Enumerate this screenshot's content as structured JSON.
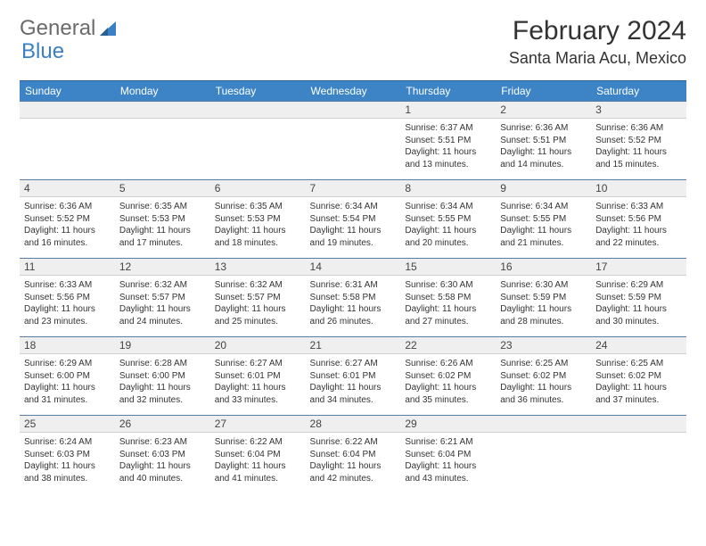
{
  "logo": {
    "text1": "General",
    "text2": "Blue"
  },
  "title": {
    "month": "February 2024",
    "location": "Santa Maria Acu, Mexico"
  },
  "headerColor": "#3c84c6",
  "dayBgColor": "#efefef",
  "weekdays": [
    "Sunday",
    "Monday",
    "Tuesday",
    "Wednesday",
    "Thursday",
    "Friday",
    "Saturday"
  ],
  "weeks": [
    [
      {
        "n": "",
        "sunrise": "",
        "sunset": "",
        "day": ""
      },
      {
        "n": "",
        "sunrise": "",
        "sunset": "",
        "day": ""
      },
      {
        "n": "",
        "sunrise": "",
        "sunset": "",
        "day": ""
      },
      {
        "n": "",
        "sunrise": "",
        "sunset": "",
        "day": ""
      },
      {
        "n": "1",
        "sunrise": "Sunrise: 6:37 AM",
        "sunset": "Sunset: 5:51 PM",
        "day": "Daylight: 11 hours and 13 minutes."
      },
      {
        "n": "2",
        "sunrise": "Sunrise: 6:36 AM",
        "sunset": "Sunset: 5:51 PM",
        "day": "Daylight: 11 hours and 14 minutes."
      },
      {
        "n": "3",
        "sunrise": "Sunrise: 6:36 AM",
        "sunset": "Sunset: 5:52 PM",
        "day": "Daylight: 11 hours and 15 minutes."
      }
    ],
    [
      {
        "n": "4",
        "sunrise": "Sunrise: 6:36 AM",
        "sunset": "Sunset: 5:52 PM",
        "day": "Daylight: 11 hours and 16 minutes."
      },
      {
        "n": "5",
        "sunrise": "Sunrise: 6:35 AM",
        "sunset": "Sunset: 5:53 PM",
        "day": "Daylight: 11 hours and 17 minutes."
      },
      {
        "n": "6",
        "sunrise": "Sunrise: 6:35 AM",
        "sunset": "Sunset: 5:53 PM",
        "day": "Daylight: 11 hours and 18 minutes."
      },
      {
        "n": "7",
        "sunrise": "Sunrise: 6:34 AM",
        "sunset": "Sunset: 5:54 PM",
        "day": "Daylight: 11 hours and 19 minutes."
      },
      {
        "n": "8",
        "sunrise": "Sunrise: 6:34 AM",
        "sunset": "Sunset: 5:55 PM",
        "day": "Daylight: 11 hours and 20 minutes."
      },
      {
        "n": "9",
        "sunrise": "Sunrise: 6:34 AM",
        "sunset": "Sunset: 5:55 PM",
        "day": "Daylight: 11 hours and 21 minutes."
      },
      {
        "n": "10",
        "sunrise": "Sunrise: 6:33 AM",
        "sunset": "Sunset: 5:56 PM",
        "day": "Daylight: 11 hours and 22 minutes."
      }
    ],
    [
      {
        "n": "11",
        "sunrise": "Sunrise: 6:33 AM",
        "sunset": "Sunset: 5:56 PM",
        "day": "Daylight: 11 hours and 23 minutes."
      },
      {
        "n": "12",
        "sunrise": "Sunrise: 6:32 AM",
        "sunset": "Sunset: 5:57 PM",
        "day": "Daylight: 11 hours and 24 minutes."
      },
      {
        "n": "13",
        "sunrise": "Sunrise: 6:32 AM",
        "sunset": "Sunset: 5:57 PM",
        "day": "Daylight: 11 hours and 25 minutes."
      },
      {
        "n": "14",
        "sunrise": "Sunrise: 6:31 AM",
        "sunset": "Sunset: 5:58 PM",
        "day": "Daylight: 11 hours and 26 minutes."
      },
      {
        "n": "15",
        "sunrise": "Sunrise: 6:30 AM",
        "sunset": "Sunset: 5:58 PM",
        "day": "Daylight: 11 hours and 27 minutes."
      },
      {
        "n": "16",
        "sunrise": "Sunrise: 6:30 AM",
        "sunset": "Sunset: 5:59 PM",
        "day": "Daylight: 11 hours and 28 minutes."
      },
      {
        "n": "17",
        "sunrise": "Sunrise: 6:29 AM",
        "sunset": "Sunset: 5:59 PM",
        "day": "Daylight: 11 hours and 30 minutes."
      }
    ],
    [
      {
        "n": "18",
        "sunrise": "Sunrise: 6:29 AM",
        "sunset": "Sunset: 6:00 PM",
        "day": "Daylight: 11 hours and 31 minutes."
      },
      {
        "n": "19",
        "sunrise": "Sunrise: 6:28 AM",
        "sunset": "Sunset: 6:00 PM",
        "day": "Daylight: 11 hours and 32 minutes."
      },
      {
        "n": "20",
        "sunrise": "Sunrise: 6:27 AM",
        "sunset": "Sunset: 6:01 PM",
        "day": "Daylight: 11 hours and 33 minutes."
      },
      {
        "n": "21",
        "sunrise": "Sunrise: 6:27 AM",
        "sunset": "Sunset: 6:01 PM",
        "day": "Daylight: 11 hours and 34 minutes."
      },
      {
        "n": "22",
        "sunrise": "Sunrise: 6:26 AM",
        "sunset": "Sunset: 6:02 PM",
        "day": "Daylight: 11 hours and 35 minutes."
      },
      {
        "n": "23",
        "sunrise": "Sunrise: 6:25 AM",
        "sunset": "Sunset: 6:02 PM",
        "day": "Daylight: 11 hours and 36 minutes."
      },
      {
        "n": "24",
        "sunrise": "Sunrise: 6:25 AM",
        "sunset": "Sunset: 6:02 PM",
        "day": "Daylight: 11 hours and 37 minutes."
      }
    ],
    [
      {
        "n": "25",
        "sunrise": "Sunrise: 6:24 AM",
        "sunset": "Sunset: 6:03 PM",
        "day": "Daylight: 11 hours and 38 minutes."
      },
      {
        "n": "26",
        "sunrise": "Sunrise: 6:23 AM",
        "sunset": "Sunset: 6:03 PM",
        "day": "Daylight: 11 hours and 40 minutes."
      },
      {
        "n": "27",
        "sunrise": "Sunrise: 6:22 AM",
        "sunset": "Sunset: 6:04 PM",
        "day": "Daylight: 11 hours and 41 minutes."
      },
      {
        "n": "28",
        "sunrise": "Sunrise: 6:22 AM",
        "sunset": "Sunset: 6:04 PM",
        "day": "Daylight: 11 hours and 42 minutes."
      },
      {
        "n": "29",
        "sunrise": "Sunrise: 6:21 AM",
        "sunset": "Sunset: 6:04 PM",
        "day": "Daylight: 11 hours and 43 minutes."
      },
      {
        "n": "",
        "sunrise": "",
        "sunset": "",
        "day": ""
      },
      {
        "n": "",
        "sunrise": "",
        "sunset": "",
        "day": ""
      }
    ]
  ]
}
